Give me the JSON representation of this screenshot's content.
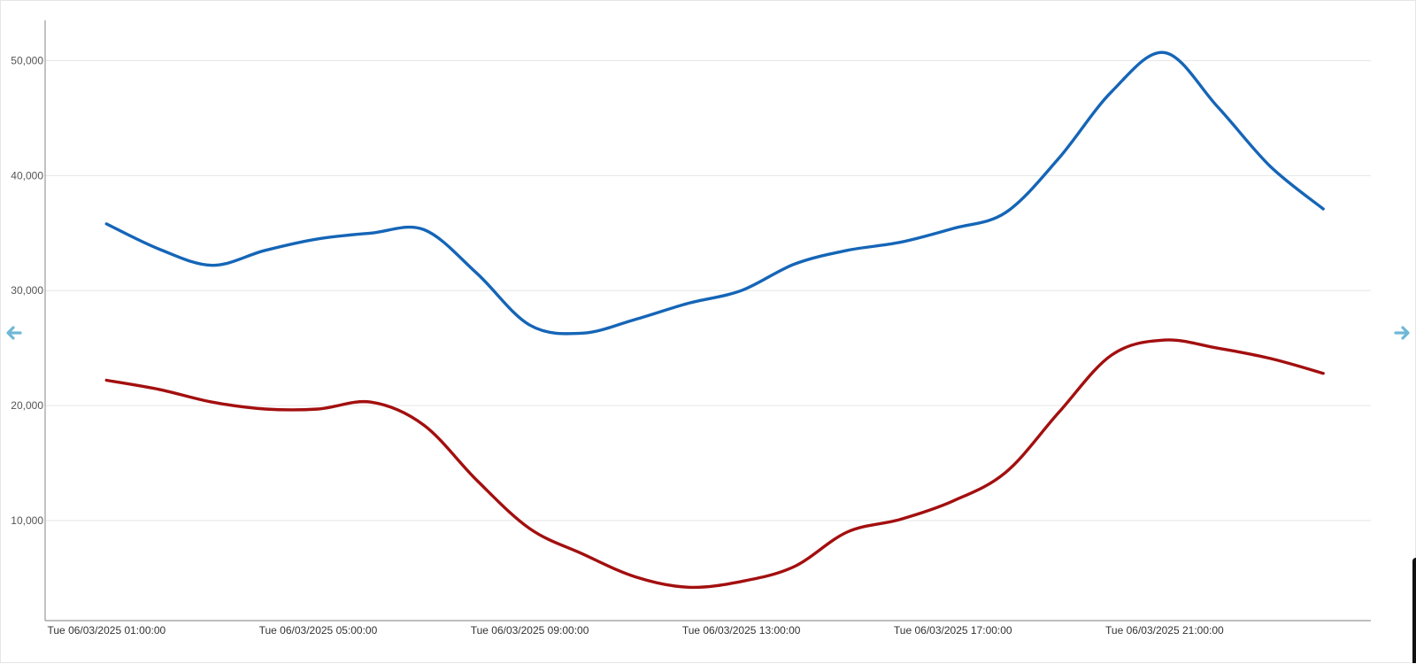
{
  "colors": {
    "series_blue": "#1565b7",
    "series_red": "#a30f0f",
    "nav_arrow": "#6fb8d6"
  },
  "nav": {
    "prev_icon": "arrow-left-icon",
    "next_icon": "arrow-right-icon"
  },
  "chart_data": {
    "type": "line",
    "title": "",
    "xlabel": "",
    "ylabel": "",
    "grid": true,
    "ylim": [
      1300,
      53500
    ],
    "y_ticks": [
      10000,
      20000,
      30000,
      40000,
      50000
    ],
    "y_tick_labels": [
      "10,000",
      "20,000",
      "30,000",
      "40,000",
      "50,000"
    ],
    "x_tick_labels": [
      "Tue 06/03/2025 01:00:00",
      "Tue 06/03/2025 05:00:00",
      "Tue 06/03/2025 09:00:00",
      "Tue 06/03/2025 13:00:00",
      "Tue 06/03/2025 17:00:00",
      "Tue 06/03/2025 21:00:00"
    ],
    "x_hours": [
      1,
      2,
      3,
      4,
      5,
      6,
      7,
      8,
      9,
      10,
      11,
      12,
      13,
      14,
      15,
      16,
      17,
      18,
      19,
      20,
      21,
      22,
      23,
      24
    ],
    "xlim_hours": [
      -0.16,
      24.9
    ],
    "series": [
      {
        "color": "#1565b7",
        "values": [
          35800,
          33600,
          32200,
          33500,
          34500,
          35000,
          35300,
          31500,
          27000,
          26300,
          27500,
          28900,
          30000,
          32300,
          33500,
          34200,
          35400,
          36800,
          41500,
          47300,
          50700,
          46000,
          40800,
          37100
        ]
      },
      {
        "color": "#a30f0f",
        "values": [
          22200,
          21400,
          20300,
          19700,
          19700,
          20300,
          18300,
          13500,
          9300,
          7100,
          5100,
          4200,
          4700,
          6000,
          9000,
          10100,
          11700,
          14200,
          19400,
          24400,
          25700,
          25000,
          24100,
          22800
        ]
      }
    ]
  }
}
